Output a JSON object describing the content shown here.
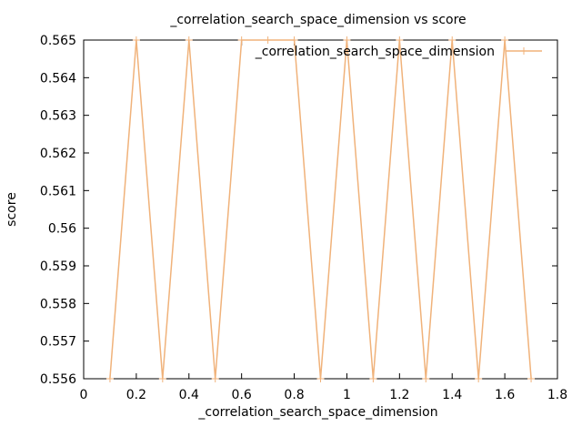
{
  "chart_data": {
    "type": "line",
    "title": "_correlation_search_space_dimension vs score",
    "xlabel": "_correlation_search_space_dimension",
    "ylabel": "score",
    "xlim": [
      0,
      1.8
    ],
    "ylim": [
      0.556,
      0.565
    ],
    "x_ticks": [
      "0",
      "0.2",
      "0.4",
      "0.6",
      "0.8",
      "1",
      "1.2",
      "1.4",
      "1.6",
      "1.8"
    ],
    "y_ticks": [
      "0.556",
      "0.557",
      "0.558",
      "0.559",
      "0.56",
      "0.561",
      "0.562",
      "0.563",
      "0.564",
      "0.565"
    ],
    "grid": false,
    "legend": "top-right",
    "series": [
      {
        "name": "_correlation_search_space_dimension",
        "color": "#f0b27a",
        "points": [
          [
            0.1,
            0.556
          ],
          [
            0.2,
            0.565
          ],
          [
            0.3,
            0.556
          ],
          [
            0.4,
            0.565
          ],
          [
            0.5,
            0.556
          ],
          [
            0.6,
            0.565
          ],
          [
            0.7,
            0.565
          ],
          [
            0.8,
            0.565
          ],
          [
            0.9,
            0.556
          ],
          [
            1.0,
            0.565
          ],
          [
            1.1,
            0.556
          ],
          [
            1.2,
            0.565
          ],
          [
            1.3,
            0.556
          ],
          [
            1.4,
            0.565
          ],
          [
            1.5,
            0.556
          ],
          [
            1.6,
            0.565
          ],
          [
            1.7,
            0.556
          ]
        ]
      }
    ]
  }
}
